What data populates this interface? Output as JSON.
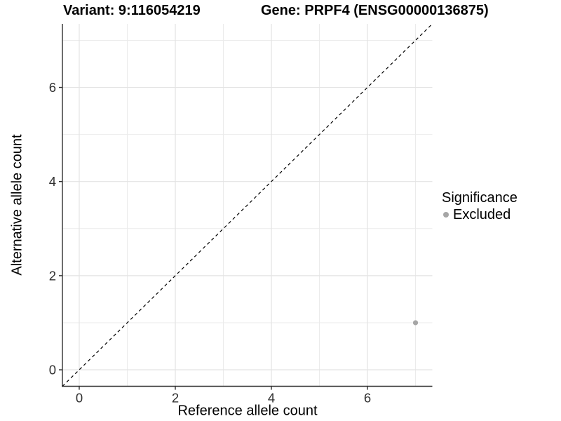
{
  "chart_data": {
    "type": "scatter",
    "title_left": "Variant: 9:116054219",
    "title_right": "Gene: PRPF4 (ENSG00000136875)",
    "xlabel": "Reference allele count",
    "ylabel": "Alternative allele count",
    "xlim": [
      -0.35,
      7.35
    ],
    "ylim": [
      -0.35,
      7.35
    ],
    "x_ticks": [
      0,
      2,
      4,
      6
    ],
    "y_ticks": [
      0,
      2,
      4,
      6
    ],
    "x_minor_ticks": [
      1,
      3,
      5,
      7
    ],
    "y_minor_ticks": [
      1,
      3,
      5,
      7
    ],
    "grid": "major+minor",
    "legend_position": "right",
    "reference_line": {
      "style": "dashed",
      "color": "#000000",
      "from": [
        -0.35,
        -0.35
      ],
      "to": [
        7.35,
        7.35
      ]
    },
    "series": [
      {
        "name": "Excluded",
        "color": "#a6a6a6",
        "points": [
          {
            "x": 7,
            "y": 1
          }
        ]
      }
    ],
    "legend": {
      "title": "Significance",
      "items": [
        {
          "label": "Excluded",
          "marker": "circle",
          "color": "#a6a6a6"
        }
      ]
    }
  },
  "colors": {
    "background": "#ffffff",
    "grid_major": "#e3e3e3",
    "grid_minor": "#ebebeb",
    "axis_line": "#2f2f2f",
    "tick_label": "#303030",
    "text": "#000000"
  }
}
